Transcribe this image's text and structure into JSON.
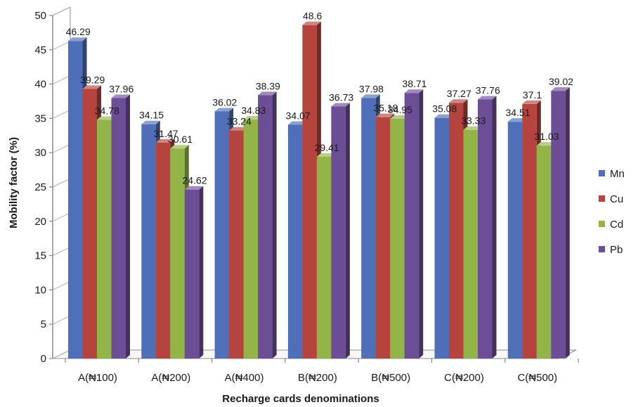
{
  "chart_data": {
    "type": "bar",
    "style": "3d-clustered-column",
    "xlabel": "Recharge cards denominations",
    "ylabel": "Mobility factor (%)",
    "ylim": [
      0,
      50
    ],
    "yticks": [
      0,
      5,
      10,
      15,
      20,
      25,
      30,
      35,
      40,
      45,
      50
    ],
    "categories": [
      "A(₦100)",
      "A(₦200)",
      "A(₦400)",
      "B(₦200)",
      "B(₦500)",
      "C(₦200)",
      "C(₦500)"
    ],
    "series": [
      {
        "name": "Mn",
        "color": "#4F6FB8",
        "values": [
          46.29,
          34.15,
          36.02,
          34.07,
          37.98,
          35.08,
          34.51
        ],
        "labels": [
          "46.29",
          "34.15",
          "36.02",
          "34.07",
          "37.98",
          "35.08",
          "34.51"
        ]
      },
      {
        "name": "Cu",
        "color": "#B5433E",
        "values": [
          39.29,
          31.47,
          33.24,
          48.6,
          35.18,
          37.27,
          37.1
        ],
        "labels": [
          "39.29",
          "31.47",
          "33.24",
          "48.6",
          "35.18",
          "37.27",
          "37.1"
        ]
      },
      {
        "name": "Cd",
        "color": "#93B447",
        "values": [
          34.78,
          30.61,
          34.83,
          29.41,
          34.95,
          33.33,
          31.03
        ],
        "labels": [
          "34.78",
          "30.61",
          "34.83",
          "29.41",
          "34.95",
          "33.33",
          "31.03"
        ]
      },
      {
        "name": "Pb",
        "color": "#6C4E96",
        "values": [
          37.96,
          24.62,
          38.39,
          36.73,
          38.71,
          37.76,
          39.02
        ],
        "labels": [
          "37.96",
          "24.62",
          "38.39",
          "36.73",
          "38.71",
          "37.76",
          "39.02"
        ]
      }
    ],
    "grid": false,
    "legend": "right"
  }
}
